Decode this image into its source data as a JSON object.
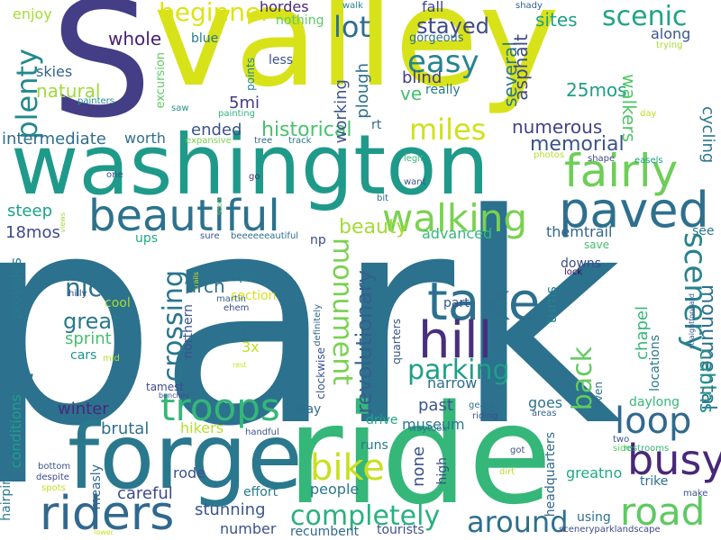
{
  "words": [
    {
      "text": "park",
      "color": "#2c718e"
    },
    {
      "text": "valley",
      "color": "#d8e219"
    },
    {
      "text": "S",
      "color": "#433e85"
    },
    {
      "text": "washington",
      "color": "#1f9a8a"
    },
    {
      "text": "ride",
      "color": "#35b779"
    },
    {
      "text": "forge",
      "color": "#2a788e"
    },
    {
      "text": "riders",
      "color": "#31688e"
    },
    {
      "text": "beautiful",
      "color": "#2c728e"
    },
    {
      "text": "paved",
      "color": "#2d708e"
    },
    {
      "text": "fairly",
      "color": "#6ece58"
    },
    {
      "text": "take",
      "color": "#2d708e"
    },
    {
      "text": "hill",
      "color": "#472f7d"
    },
    {
      "text": "walking",
      "color": "#7ad151"
    },
    {
      "text": "troops",
      "color": "#35b779"
    },
    {
      "text": "busy",
      "color": "#482878"
    },
    {
      "text": "loop",
      "color": "#31688e"
    },
    {
      "text": "bike",
      "color": "#c8e020"
    },
    {
      "text": "road",
      "color": "#5ec962"
    },
    {
      "text": "scenery",
      "color": "#26828e"
    },
    {
      "text": "parking",
      "color": "#1f9e89"
    },
    {
      "text": "completely",
      "color": "#2ab07f"
    },
    {
      "text": "around",
      "color": "#2d708e"
    },
    {
      "text": "miles",
      "color": "#d0e11c"
    },
    {
      "text": "easy",
      "color": "#25848e"
    },
    {
      "text": "plenty",
      "color": "#23888e"
    },
    {
      "text": "crossing",
      "color": "#2a768e"
    },
    {
      "text": "monument",
      "color": "#7ad151"
    },
    {
      "text": "lot",
      "color": "#2e6e8e"
    },
    {
      "text": "scenic",
      "color": "#20a486"
    },
    {
      "text": "beginner",
      "color": "#dde318"
    },
    {
      "text": "stayed",
      "color": "#3e4a89"
    },
    {
      "text": "nice",
      "color": "#2c728e"
    },
    {
      "text": "back",
      "color": "#63cb5f"
    },
    {
      "text": "great",
      "color": "#29798e"
    },
    {
      "text": "w",
      "color": "#2d718e"
    },
    {
      "text": "revolutionary",
      "color": "#34608d"
    },
    {
      "text": "historical",
      "color": "#4ac16d"
    },
    {
      "text": "beauty",
      "color": "#a5db36"
    },
    {
      "text": "memorial",
      "color": "#3b528b"
    },
    {
      "text": "numerous",
      "color": "#414487"
    },
    {
      "text": "natural",
      "color": "#9fda3a"
    },
    {
      "text": "monumental",
      "color": "#2d708e"
    },
    {
      "text": "cabins",
      "color": "#21918c"
    },
    {
      "text": "whole",
      "color": "#481f70"
    },
    {
      "text": "25mos",
      "color": "#1f9e89"
    },
    {
      "text": "several",
      "color": "#2a788e"
    },
    {
      "text": "asphalt",
      "color": "#3e4a89"
    },
    {
      "text": "sites",
      "color": "#1fa188"
    },
    {
      "text": "along",
      "color": "#39568c"
    },
    {
      "text": "walkers",
      "color": "#52c569"
    },
    {
      "text": "cycling",
      "color": "#2a788e"
    },
    {
      "text": "ended",
      "color": "#3b528b"
    },
    {
      "text": "intermediate",
      "color": "#2f6c8e"
    },
    {
      "text": "worth",
      "color": "#2d708e"
    },
    {
      "text": "5mi",
      "color": "#443983"
    },
    {
      "text": "working",
      "color": "#3a548c"
    },
    {
      "text": "plough",
      "color": "#2e6f8e"
    },
    {
      "text": "blind",
      "color": "#433e85"
    },
    {
      "text": "ve",
      "color": "#44bf70"
    },
    {
      "text": "really",
      "color": "#29798e"
    },
    {
      "text": "gorgeous",
      "color": "#2d718e"
    },
    {
      "text": "fall",
      "color": "#3f4889"
    },
    {
      "text": "hordes",
      "color": "#482878"
    },
    {
      "text": "nothing",
      "color": "#5ec962"
    },
    {
      "text": "enjoy",
      "color": "#a5db36"
    },
    {
      "text": "skies",
      "color": "#33638d"
    },
    {
      "text": "painters",
      "color": "#228c8d"
    },
    {
      "text": "excursion",
      "color": "#5ec962"
    },
    {
      "text": "points",
      "color": "#25848e"
    },
    {
      "text": "less",
      "color": "#3b528b"
    },
    {
      "text": "blue",
      "color": "#2a788e"
    },
    {
      "text": "saw",
      "color": "#21918c"
    },
    {
      "text": "painting",
      "color": "#31b57b"
    },
    {
      "text": "rt",
      "color": "#31688e"
    },
    {
      "text": "walk",
      "color": "#25848e"
    },
    {
      "text": "shady",
      "color": "#33638d"
    },
    {
      "text": "trying",
      "color": "#a5db36"
    },
    {
      "text": "day",
      "color": "#c2df23"
    },
    {
      "text": "photos",
      "color": "#b5de2b"
    },
    {
      "text": "shape",
      "color": "#3f4889"
    },
    {
      "text": "easels",
      "color": "#1f9e89"
    },
    {
      "text": "legit",
      "color": "#35b779"
    },
    {
      "text": "want",
      "color": "#3b528b"
    },
    {
      "text": "bit",
      "color": "#2f6c8e"
    },
    {
      "text": "expansive",
      "color": "#7ad151"
    },
    {
      "text": "tree",
      "color": "#31688e"
    },
    {
      "text": "track",
      "color": "#29798e"
    },
    {
      "text": "go",
      "color": "#472f7d"
    },
    {
      "text": "one",
      "color": "#3b528b"
    },
    {
      "text": "steep",
      "color": "#1fa188"
    },
    {
      "text": "18mos",
      "color": "#3e4a89"
    },
    {
      "text": "views",
      "color": "#a0da39"
    },
    {
      "text": "soon",
      "color": "#5ec962"
    },
    {
      "text": "ups",
      "color": "#22a884"
    },
    {
      "text": "sure",
      "color": "#39568c"
    },
    {
      "text": "beeeeeeautiful",
      "color": "#2e6e8e"
    },
    {
      "text": "np",
      "color": "#3e4a89"
    },
    {
      "text": "advanced",
      "color": "#35b779"
    },
    {
      "text": "themtrail",
      "color": "#31688e"
    },
    {
      "text": "save",
      "color": "#44bf70"
    },
    {
      "text": "see",
      "color": "#2a788e"
    },
    {
      "text": "turns",
      "color": "#277f8e"
    },
    {
      "text": "downs",
      "color": "#3e4a89"
    },
    {
      "text": "lock",
      "color": "#440154"
    },
    {
      "text": "trails",
      "color": "#c8e020"
    },
    {
      "text": "spur",
      "color": "#2a768e"
    },
    {
      "text": "section",
      "color": "#d8e219"
    },
    {
      "text": "definitely",
      "color": "#31688e"
    },
    {
      "text": "part",
      "color": "#3b528b"
    },
    {
      "text": "chapel",
      "color": "#35b779"
    },
    {
      "text": "arch",
      "color": "#2c728e"
    },
    {
      "text": "cool",
      "color": "#a5db36"
    },
    {
      "text": "hilly",
      "color": "#3b528b"
    },
    {
      "text": "martin",
      "color": "#33638d"
    },
    {
      "text": "ehem",
      "color": "#3e4a89"
    },
    {
      "text": "straightforward",
      "color": "#39568c"
    },
    {
      "text": "sprint",
      "color": "#44bf70"
    },
    {
      "text": "northern",
      "color": "#3b528b"
    },
    {
      "text": "knox",
      "color": "#2d708e"
    },
    {
      "text": "locations",
      "color": "#2a788e"
    },
    {
      "text": "quarters",
      "color": "#39568c"
    },
    {
      "text": "cars",
      "color": "#21918c"
    },
    {
      "text": "mid",
      "color": "#b5de2b"
    },
    {
      "text": "provides",
      "color": "#2a788e"
    },
    {
      "text": "3x",
      "color": "#c2df23"
    },
    {
      "text": "rest",
      "color": "#c8e020"
    },
    {
      "text": "clockwise",
      "color": "#3b528b"
    },
    {
      "text": "narrow",
      "color": "#2f6c8e"
    },
    {
      "text": "tamest",
      "color": "#3e4a89"
    },
    {
      "text": "even",
      "color": "#2d708e"
    },
    {
      "text": "benches",
      "color": "#3b528b"
    },
    {
      "text": "past",
      "color": "#39568c"
    },
    {
      "text": "winter",
      "color": "#482878"
    },
    {
      "text": "hikers",
      "color": "#b5de2b"
    },
    {
      "text": "brutal",
      "color": "#2d708e"
    },
    {
      "text": "museum",
      "color": "#2a788e"
    },
    {
      "text": "drive",
      "color": "#22a884"
    },
    {
      "text": "way",
      "color": "#2f6c8e"
    },
    {
      "text": "goes",
      "color": "#2c728e"
    },
    {
      "text": "areas",
      "color": "#33638d"
    },
    {
      "text": "daylong",
      "color": "#35b779"
    },
    {
      "text": "two",
      "color": "#3b528b"
    },
    {
      "text": "side",
      "color": "#5ec962"
    },
    {
      "text": "gears",
      "color": "#2e6e8e"
    },
    {
      "text": "riding",
      "color": "#3b528b"
    },
    {
      "text": "waytook",
      "color": "#2a788e"
    },
    {
      "text": "handful",
      "color": "#3b528b"
    },
    {
      "text": "conditions",
      "color": "#1f9e89"
    },
    {
      "text": "none",
      "color": "#3b528b"
    },
    {
      "text": "runs",
      "color": "#2a788e"
    },
    {
      "text": "high",
      "color": "#3e4a89"
    },
    {
      "text": "headquarters",
      "color": "#31688e"
    },
    {
      "text": "got",
      "color": "#3b528b"
    },
    {
      "text": "restrooms",
      "color": "#35b779"
    },
    {
      "text": "bottom",
      "color": "#3b528b"
    },
    {
      "text": "despite",
      "color": "#3e4a89"
    },
    {
      "text": "spots",
      "color": "#c2df23"
    },
    {
      "text": "measly",
      "color": "#31688e"
    },
    {
      "text": "hairpin",
      "color": "#2a788e"
    },
    {
      "text": "careful",
      "color": "#3e4a89"
    },
    {
      "text": "rode",
      "color": "#3b528b"
    },
    {
      "text": "stunning",
      "color": "#39568c"
    },
    {
      "text": "effort",
      "color": "#29798e"
    },
    {
      "text": "people",
      "color": "#2a788e"
    },
    {
      "text": "number",
      "color": "#3b528b"
    },
    {
      "text": "recumbent",
      "color": "#31688e"
    },
    {
      "text": "tourists",
      "color": "#3b528b"
    },
    {
      "text": "dirt",
      "color": "#b5de2b"
    },
    {
      "text": "greatno",
      "color": "#22a884"
    },
    {
      "text": "trike",
      "color": "#2e6e8e"
    },
    {
      "text": "make",
      "color": "#3b528b"
    },
    {
      "text": "using",
      "color": "#2d708e"
    },
    {
      "text": "sceneryparklandscape",
      "color": "#3e4a89"
    },
    {
      "text": "lower",
      "color": "#c8e020"
    }
  ]
}
